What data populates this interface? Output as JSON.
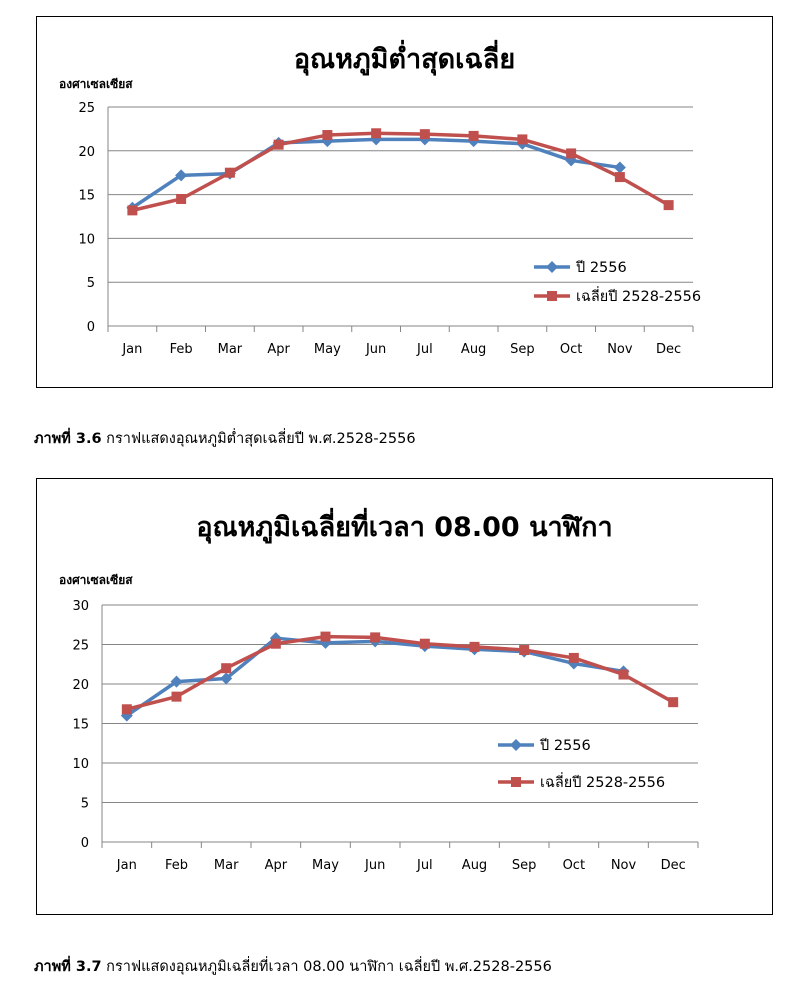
{
  "charts": [
    {
      "title": "อุณหภูมิต่ำสุดเฉลี่ย",
      "ylabel": "องศาเซลเซียส"
    },
    {
      "title": "อุณหภูมิเฉลี่ยที่เวลา 08.00 นาฬิกา",
      "ylabel": "องศาเซลเซียส"
    }
  ],
  "captions": [
    {
      "label": "ภาพที่ 3.6",
      "text": " กราฟแสดงอุณหภูมิต่ำสุดเฉลี่ยปี พ.ศ.2528-2556"
    },
    {
      "label": "ภาพที่ 3.7",
      "text": " กราฟแสดงอุณหภูมิเฉลี่ยที่เวลา 08.00 นาฬิกา เฉลี่ยปี พ.ศ.2528-2556"
    }
  ],
  "colors": {
    "series_blue": "#4F81BD",
    "series_red": "#C0504D",
    "grid": "#868686"
  },
  "chart_data": [
    {
      "type": "line",
      "title": "อุณหภูมิต่ำสุดเฉลี่ย",
      "ylabel": "องศาเซลเซียส",
      "xlabel": "",
      "categories": [
        "Jan",
        "Feb",
        "Mar",
        "Apr",
        "May",
        "Jun",
        "Jul",
        "Aug",
        "Sep",
        "Oct",
        "Nov",
        "Dec"
      ],
      "ylim": [
        0,
        25
      ],
      "yticks": [
        0,
        5,
        10,
        15,
        20,
        25
      ],
      "grid": true,
      "legend": "right",
      "series": [
        {
          "name": "ปี 2556",
          "color": "#4F81BD",
          "marker": "diamond",
          "values": [
            13.5,
            17.2,
            17.4,
            20.9,
            21.1,
            21.3,
            21.3,
            21.1,
            20.8,
            18.9,
            18.1,
            null
          ]
        },
        {
          "name": "เฉลี่ยปี 2528-2556",
          "color": "#C0504D",
          "marker": "square",
          "values": [
            13.2,
            14.5,
            17.5,
            20.7,
            21.8,
            22.0,
            21.9,
            21.7,
            21.3,
            19.7,
            17.0,
            13.8
          ]
        }
      ]
    },
    {
      "type": "line",
      "title": "อุณหภูมิเฉลี่ยที่เวลา 08.00 นาฬิกา",
      "ylabel": "องศาเซลเซียส",
      "xlabel": "",
      "categories": [
        "Jan",
        "Feb",
        "Mar",
        "Apr",
        "May",
        "Jun",
        "Jul",
        "Aug",
        "Sep",
        "Oct",
        "Nov",
        "Dec"
      ],
      "ylim": [
        0,
        30
      ],
      "yticks": [
        0,
        5,
        10,
        15,
        20,
        25,
        30
      ],
      "grid": true,
      "legend": "right",
      "series": [
        {
          "name": "ปี 2556",
          "color": "#4F81BD",
          "marker": "diamond",
          "values": [
            16.0,
            20.3,
            20.7,
            25.8,
            25.2,
            25.4,
            24.8,
            24.4,
            24.1,
            22.6,
            21.6,
            null
          ]
        },
        {
          "name": "เฉลี่ยปี 2528-2556",
          "color": "#C0504D",
          "marker": "square",
          "values": [
            16.8,
            18.4,
            22.0,
            25.1,
            26.0,
            25.9,
            25.1,
            24.7,
            24.3,
            23.3,
            21.2,
            17.7
          ]
        }
      ]
    }
  ]
}
